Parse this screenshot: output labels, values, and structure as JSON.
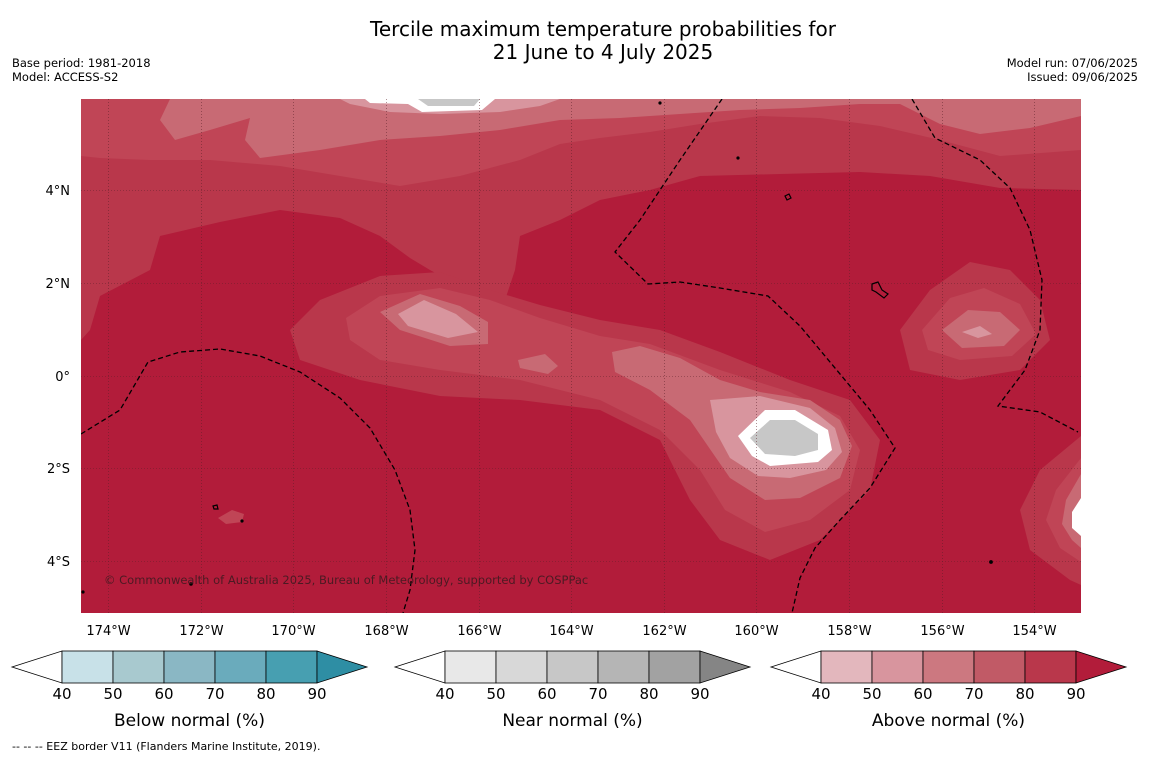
{
  "title": {
    "line1": "Tercile maximum temperature probabilities for",
    "line2": "21 June to 4 July 2025"
  },
  "meta_left": {
    "base_period": "Base period: 1981-2018",
    "model": "Model: ACCESS-S2"
  },
  "meta_right": {
    "model_run": "Model run: 07/06/2025",
    "issued": "Issued: 09/06/2025"
  },
  "map": {
    "lat_labels": [
      "4°N",
      "2°N",
      "0°",
      "2°S",
      "4°S"
    ],
    "lon_labels": [
      "174°W",
      "172°W",
      "170°W",
      "168°W",
      "166°W",
      "164°W",
      "162°W",
      "160°W",
      "158°W",
      "156°W",
      "154°W"
    ],
    "copyright": "© Commonwealth of Australia 2025, Bureau of Meteorology, supported by COSPPac"
  },
  "colorbars": [
    {
      "title": "Below normal (%)",
      "ticks": [
        "40",
        "50",
        "60",
        "70",
        "80",
        "90"
      ],
      "colors": [
        "#ffffff",
        "#c8e1e8",
        "#a8c9cf",
        "#8ab7c4",
        "#6aabbc",
        "#479fb1",
        "#2e8ea4"
      ]
    },
    {
      "title": "Near normal (%)",
      "ticks": [
        "40",
        "50",
        "60",
        "70",
        "80",
        "90"
      ],
      "colors": [
        "#ffffff",
        "#e8e8e8",
        "#d8d8d8",
        "#c7c7c7",
        "#b5b5b5",
        "#a2a2a2",
        "#858585"
      ]
    },
    {
      "title": "Above normal (%)",
      "ticks": [
        "40",
        "50",
        "60",
        "70",
        "80",
        "90"
      ],
      "colors": [
        "#ffffff",
        "#e3b7bd",
        "#d8959e",
        "#cc7880",
        "#c15a66",
        "#b9374b",
        "#b21c3a"
      ]
    }
  ],
  "footnote": "--  --  -- EEZ border V11 (Flanders Marine Institute, 2019)."
}
